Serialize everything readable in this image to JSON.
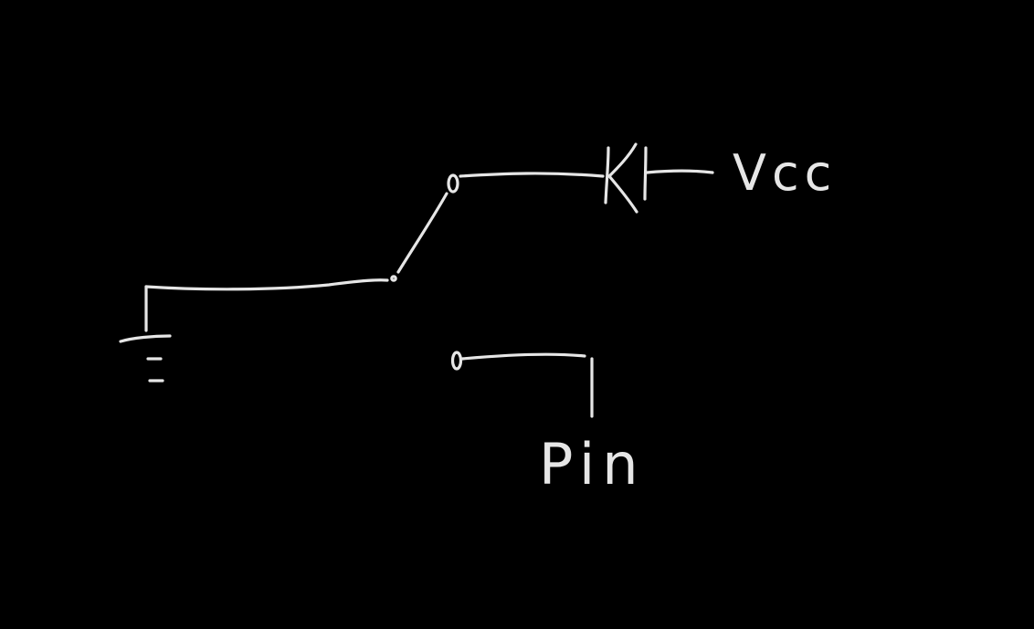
{
  "diagram": {
    "background_color": "#000000",
    "stroke_color": "#e6e6e6",
    "labels": {
      "vcc": "Vcc",
      "pin": "Pin"
    },
    "components": {
      "switch": "spdt-switch",
      "diode": "diode",
      "ground": "ground-symbol"
    }
  }
}
